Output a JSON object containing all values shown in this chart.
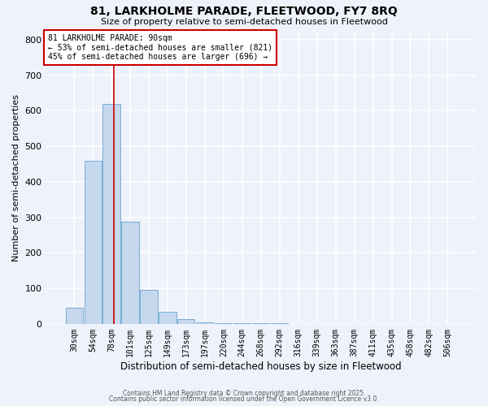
{
  "title1": "81, LARKHOLME PARADE, FLEETWOOD, FY7 8RQ",
  "title2": "Size of property relative to semi-detached houses in Fleetwood",
  "xlabel": "Distribution of semi-detached houses by size in Fleetwood",
  "ylabel": "Number of semi-detached properties",
  "bar_labels": [
    "30sqm",
    "54sqm",
    "78sqm",
    "101sqm",
    "125sqm",
    "149sqm",
    "173sqm",
    "197sqm",
    "220sqm",
    "244sqm",
    "268sqm",
    "292sqm",
    "316sqm",
    "339sqm",
    "363sqm",
    "387sqm",
    "411sqm",
    "435sqm",
    "458sqm",
    "482sqm",
    "506sqm"
  ],
  "bar_values": [
    45,
    460,
    618,
    288,
    95,
    35,
    13,
    5,
    3,
    2,
    1,
    1,
    0,
    0,
    0,
    0,
    0,
    0,
    0,
    0,
    0
  ],
  "bar_color": "#c5d8ee",
  "bar_edge_color": "#7aadd4",
  "vline_x": 2.15,
  "vline_color": "#cc0000",
  "annotation_title": "81 LARKHOLME PARADE: 90sqm",
  "annotation_line1": "← 53% of semi-detached houses are smaller (821)",
  "annotation_line2": "45% of semi-detached houses are larger (696) →",
  "annotation_box_color": "#cc0000",
  "ylim": [
    0,
    820
  ],
  "background_color": "#eef2fb",
  "footer1": "Contains HM Land Registry data © Crown copyright and database right 2025.",
  "footer2": "Contains public sector information licensed under the Open Government Licence v3.0."
}
